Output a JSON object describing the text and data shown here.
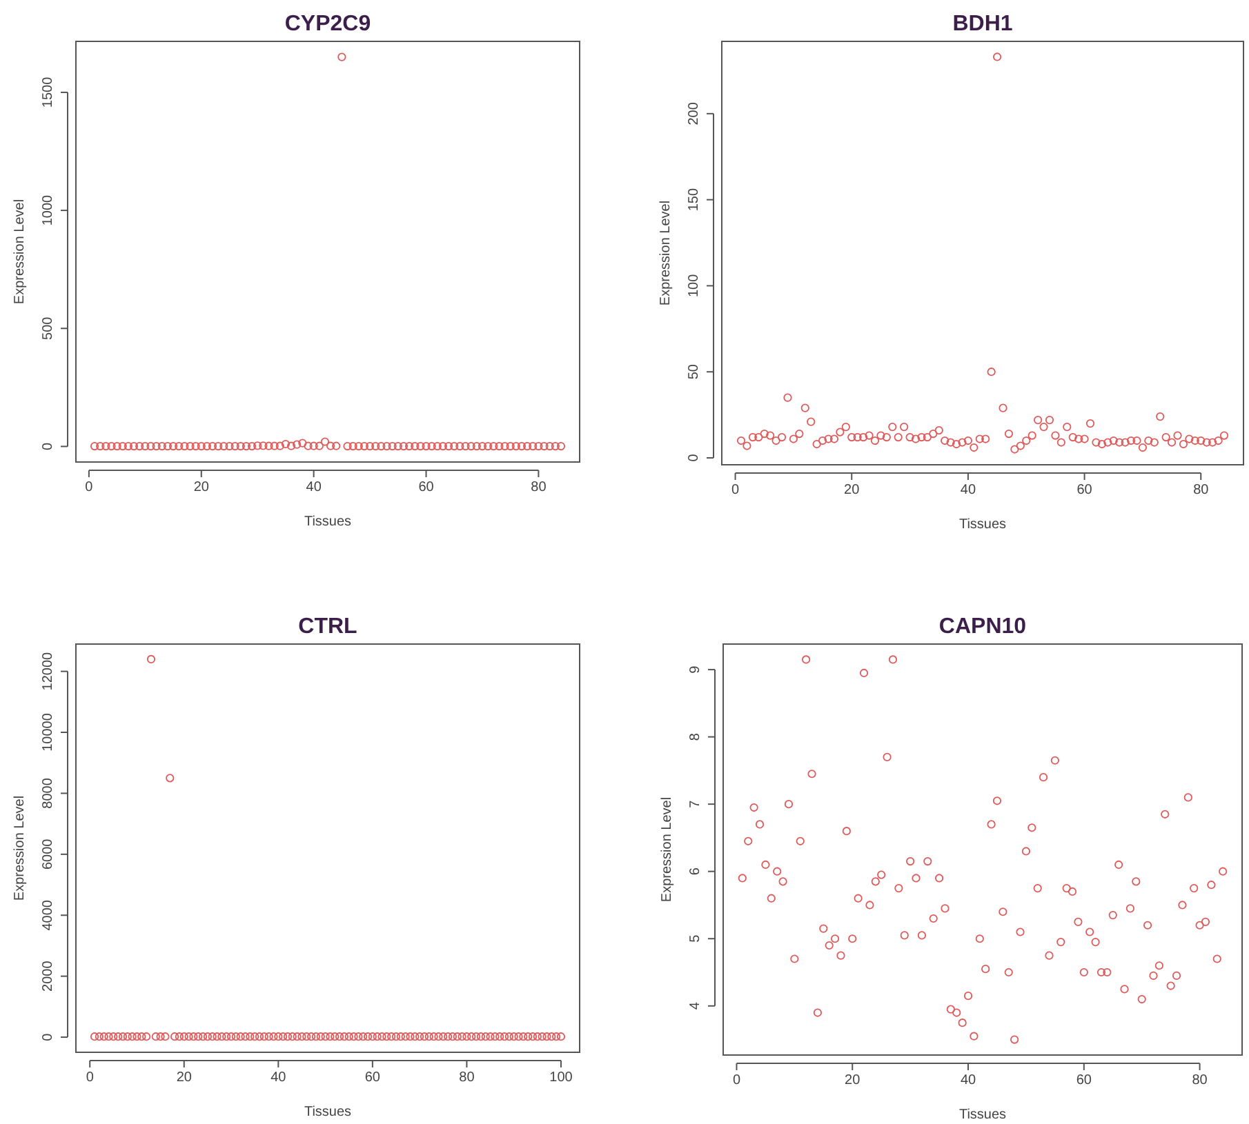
{
  "chart_data": [
    {
      "type": "scatter",
      "title": "CYP2C9",
      "xlabel": "Tissues",
      "ylabel": "Expression Level",
      "marker": "circle",
      "color": "#e05a5a",
      "x": [
        1,
        2,
        3,
        4,
        5,
        6,
        7,
        8,
        9,
        10,
        11,
        12,
        13,
        14,
        15,
        16,
        17,
        18,
        19,
        20,
        21,
        22,
        23,
        24,
        25,
        26,
        27,
        28,
        29,
        30,
        31,
        32,
        33,
        34,
        35,
        36,
        37,
        38,
        39,
        40,
        41,
        42,
        43,
        44,
        45,
        46,
        47,
        48,
        49,
        50,
        51,
        52,
        53,
        54,
        55,
        56,
        57,
        58,
        59,
        60,
        61,
        62,
        63,
        64,
        65,
        66,
        67,
        68,
        69,
        70,
        71,
        72,
        73,
        74,
        75,
        76,
        77,
        78,
        79,
        80,
        81,
        82,
        83,
        84
      ],
      "values": [
        1,
        1,
        1,
        1,
        1,
        1,
        1,
        1,
        1,
        1,
        1,
        1,
        1,
        1,
        1,
        1,
        1,
        1,
        1,
        1,
        1,
        1,
        1,
        1,
        1,
        1,
        1,
        1,
        1,
        3,
        3,
        2,
        2,
        2,
        10,
        2,
        8,
        14,
        2,
        2,
        2,
        20,
        2,
        2,
        1650,
        1,
        1,
        1,
        1,
        1,
        1,
        1,
        1,
        1,
        1,
        1,
        1,
        1,
        1,
        1,
        1,
        1,
        1,
        1,
        1,
        1,
        1,
        1,
        1,
        1,
        1,
        1,
        1,
        1,
        1,
        1,
        1,
        1,
        1,
        1,
        1,
        1,
        1,
        1
      ],
      "xlim": [
        -2.32,
        87.32
      ],
      "ylim": [
        -66,
        1716
      ],
      "xticks": [
        0,
        20,
        40,
        60,
        80
      ],
      "yticks": [
        0,
        500,
        1000,
        1500
      ]
    },
    {
      "type": "scatter",
      "title": "BDH1",
      "xlabel": "Tissues",
      "ylabel": "Expression Level",
      "marker": "circle",
      "color": "#e05a5a",
      "x": [
        1,
        2,
        3,
        4,
        5,
        6,
        7,
        8,
        9,
        10,
        11,
        12,
        13,
        14,
        15,
        16,
        17,
        18,
        19,
        20,
        21,
        22,
        23,
        24,
        25,
        26,
        27,
        28,
        29,
        30,
        31,
        32,
        33,
        34,
        35,
        36,
        37,
        38,
        39,
        40,
        41,
        42,
        43,
        44,
        45,
        46,
        47,
        48,
        49,
        50,
        51,
        52,
        53,
        54,
        55,
        56,
        57,
        58,
        59,
        60,
        61,
        62,
        63,
        64,
        65,
        66,
        67,
        68,
        69,
        70,
        71,
        72,
        73,
        74,
        75,
        76,
        77,
        78,
        79,
        80,
        81,
        82,
        83,
        84
      ],
      "values": [
        10,
        7,
        12,
        12,
        14,
        13,
        10,
        12,
        35,
        11,
        14,
        29,
        21,
        8,
        10,
        11,
        11,
        15,
        18,
        12,
        12,
        12,
        13,
        10,
        13,
        12,
        18,
        12,
        18,
        12,
        11,
        12,
        12,
        14,
        16,
        10,
        9,
        8,
        9,
        10,
        6,
        11,
        11,
        50,
        233,
        29,
        14,
        5,
        7,
        10,
        13,
        22,
        18,
        22,
        13,
        9,
        18,
        12,
        11,
        11,
        20,
        9,
        8,
        9,
        10,
        9,
        9,
        10,
        10,
        6,
        10,
        9,
        24,
        12,
        9,
        13,
        8,
        11,
        10,
        10,
        9,
        9,
        10,
        13
      ],
      "xlim": [
        -2.32,
        87.32
      ],
      "ylim": [
        -4,
        242
      ],
      "xticks": [
        0,
        20,
        40,
        60,
        80
      ],
      "yticks": [
        0,
        50,
        100,
        150,
        200
      ]
    },
    {
      "type": "scatter",
      "title": "CTRL",
      "xlabel": "Tissues",
      "ylabel": "Expression Level",
      "marker": "circle",
      "color": "#e05a5a",
      "x": [
        1,
        2,
        3,
        4,
        5,
        6,
        7,
        8,
        9,
        10,
        11,
        12,
        13,
        14,
        15,
        16,
        17,
        18,
        19,
        20,
        21,
        22,
        23,
        24,
        25,
        26,
        27,
        28,
        29,
        30,
        31,
        32,
        33,
        34,
        35,
        36,
        37,
        38,
        39,
        40,
        41,
        42,
        43,
        44,
        45,
        46,
        47,
        48,
        49,
        50,
        51,
        52,
        53,
        54,
        55,
        56,
        57,
        58,
        59,
        60,
        61,
        62,
        63,
        64,
        65,
        66,
        67,
        68,
        69,
        70,
        71,
        72,
        73,
        74,
        75,
        76,
        77,
        78,
        79,
        80,
        81,
        82,
        83,
        84,
        85,
        86,
        87,
        88,
        89,
        90,
        91,
        92,
        93,
        94,
        95,
        96,
        97,
        98,
        99,
        100
      ],
      "values": [
        20,
        20,
        20,
        20,
        20,
        20,
        20,
        20,
        20,
        20,
        20,
        20,
        12400,
        20,
        20,
        20,
        8500,
        20,
        20,
        20,
        20,
        20,
        20,
        20,
        20,
        20,
        20,
        20,
        20,
        20,
        20,
        20,
        20,
        20,
        20,
        20,
        20,
        20,
        20,
        20,
        20,
        20,
        20,
        20,
        20,
        20,
        20,
        20,
        20,
        20,
        20,
        20,
        20,
        20,
        20,
        20,
        20,
        20,
        20,
        20,
        20,
        20,
        20,
        20,
        20,
        20,
        20,
        20,
        20,
        20,
        20,
        20,
        20,
        20,
        20,
        20,
        20,
        20,
        20,
        20,
        20,
        20,
        20,
        20,
        20,
        20,
        20,
        20,
        20,
        20,
        20,
        20,
        20,
        20,
        20,
        20,
        20,
        20,
        20,
        20
      ],
      "xlim": [
        -2.96,
        103.96
      ],
      "ylim": [
        -496,
        12896
      ],
      "xticks": [
        0,
        20,
        40,
        60,
        80,
        100
      ],
      "yticks": [
        0,
        2000,
        4000,
        6000,
        8000,
        10000,
        12000
      ]
    },
    {
      "type": "scatter",
      "title": "CAPN10",
      "xlabel": "Tissues",
      "ylabel": "Expression Level",
      "marker": "circle",
      "color": "#e05a5a",
      "x": [
        1,
        2,
        3,
        4,
        5,
        6,
        7,
        8,
        9,
        10,
        11,
        12,
        13,
        14,
        15,
        16,
        17,
        18,
        19,
        20,
        21,
        22,
        23,
        24,
        25,
        26,
        27,
        28,
        29,
        30,
        31,
        32,
        33,
        34,
        35,
        36,
        37,
        38,
        39,
        40,
        41,
        42,
        43,
        44,
        45,
        46,
        47,
        48,
        49,
        50,
        51,
        52,
        53,
        54,
        55,
        56,
        57,
        58,
        59,
        60,
        61,
        62,
        63,
        64,
        65,
        66,
        67,
        68,
        69,
        70,
        71,
        72,
        73,
        74,
        75,
        76,
        77,
        78,
        79,
        80,
        81,
        82,
        83,
        84
      ],
      "values": [
        5.9,
        6.45,
        6.95,
        6.7,
        6.1,
        5.6,
        6.0,
        5.85,
        7.0,
        4.7,
        6.45,
        9.15,
        7.45,
        3.9,
        5.15,
        4.9,
        5.0,
        4.75,
        6.6,
        5.0,
        5.6,
        8.95,
        5.5,
        5.85,
        5.95,
        7.7,
        9.15,
        5.75,
        5.05,
        6.15,
        5.9,
        5.05,
        6.15,
        5.3,
        5.9,
        5.45,
        3.95,
        3.9,
        3.75,
        4.15,
        3.55,
        5.0,
        4.55,
        6.7,
        7.05,
        5.4,
        4.5,
        3.5,
        5.1,
        6.3,
        6.65,
        5.75,
        7.4,
        4.75,
        7.65,
        4.95,
        5.75,
        5.7,
        5.25,
        4.5,
        5.1,
        4.95,
        4.5,
        4.5,
        5.35,
        6.1,
        4.25,
        5.45,
        5.85,
        4.1,
        5.2,
        4.45,
        4.6,
        6.85,
        4.3,
        4.45,
        5.5,
        7.1,
        5.75,
        5.2,
        5.25,
        5.8,
        4.7,
        6.0
      ],
      "xlim": [
        -2.32,
        87.32
      ],
      "ylim": [
        3.27,
        9.38
      ],
      "xticks": [
        0,
        20,
        40,
        60,
        80
      ],
      "yticks": [
        4,
        5,
        6,
        7,
        8,
        9
      ]
    }
  ]
}
